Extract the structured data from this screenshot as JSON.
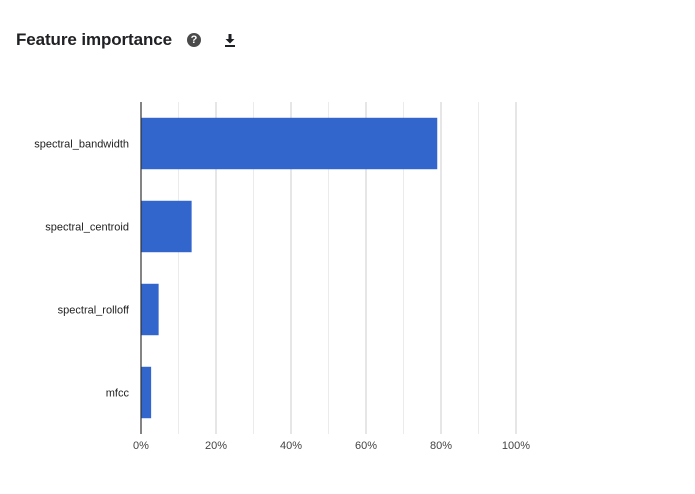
{
  "header": {
    "title": "Feature importance",
    "help_icon": "help-circle-icon",
    "help_glyph": "?",
    "download_icon": "download-icon"
  },
  "chart_data": {
    "type": "bar",
    "orientation": "horizontal",
    "categories": [
      "spectral_bandwidth",
      "spectral_centroid",
      "spectral_rolloff",
      "mfcc"
    ],
    "values": [
      0.79,
      0.135,
      0.047,
      0.027
    ],
    "xlim": [
      0,
      1
    ],
    "xticks": [
      0,
      0.2,
      0.4,
      0.6,
      0.8,
      1.0
    ],
    "xtick_labels": [
      "0%",
      "20%",
      "40%",
      "60%",
      "80%",
      "100%"
    ],
    "grid": true,
    "bar_color": "#3366cc",
    "axis_color": "#333333",
    "grid_color": "#cccccc",
    "minor_grid_color": "#ebebeb"
  }
}
